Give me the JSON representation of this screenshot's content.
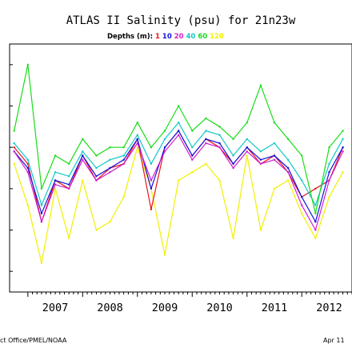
{
  "chart_data": {
    "type": "line",
    "title": "ATLAS II Salinity (psu) for 21n23w",
    "legend": {
      "prefix": "Depths (m):",
      "items": [
        {
          "label": "1",
          "color": "#e8151b"
        },
        {
          "label": "10",
          "color": "#1414dc"
        },
        {
          "label": "20",
          "color": "#d21ed2"
        },
        {
          "label": "40",
          "color": "#12c8c8"
        },
        {
          "label": "60",
          "color": "#18dd18"
        },
        {
          "label": "120",
          "color": "#f2f000"
        }
      ],
      "placement": "top-center"
    },
    "x_ticks": [
      "2007",
      "2008",
      "2009",
      "2010",
      "2011",
      "2012"
    ],
    "xlim": [
      "2006-09",
      "2012-12"
    ],
    "ylim": [
      36.85,
      37.45
    ],
    "grid": false,
    "series": [
      {
        "name": "1",
        "color": "#e8151b",
        "x": [
          "2006-10",
          "2007-01",
          "2007-04",
          "2007-07",
          "2007-10",
          "2008-01",
          "2008-04",
          "2008-07",
          "2008-10",
          "2009-01",
          "2009-04",
          "2009-07",
          "2009-10",
          "2010-01",
          "2010-04",
          "2010-07",
          "2010-10",
          "2011-01",
          "2011-04",
          "2011-07",
          "2011-10",
          "2012-01",
          "2012-04",
          "2012-07",
          "2012-10"
        ],
        "values": [
          37.2,
          37.16,
          37.02,
          37.12,
          37.1,
          37.18,
          37.12,
          37.15,
          37.16,
          37.22,
          37.05,
          37.2,
          37.24,
          37.18,
          37.22,
          37.2,
          37.16,
          37.2,
          37.16,
          37.18,
          37.14,
          37.08,
          37.1,
          37.12,
          37.2
        ]
      },
      {
        "name": "10",
        "color": "#1414dc",
        "x": [
          "2006-10",
          "2007-01",
          "2007-04",
          "2007-07",
          "2007-10",
          "2008-01",
          "2008-04",
          "2008-07",
          "2008-10",
          "2009-01",
          "2009-04",
          "2009-07",
          "2009-10",
          "2010-01",
          "2010-04",
          "2010-07",
          "2010-10",
          "2011-01",
          "2011-04",
          "2011-07",
          "2011-10",
          "2012-01",
          "2012-04",
          "2012-07",
          "2012-10"
        ],
        "values": [
          37.19,
          37.15,
          37.04,
          37.12,
          37.11,
          37.18,
          37.13,
          37.15,
          37.17,
          37.22,
          37.1,
          37.2,
          37.24,
          37.18,
          37.22,
          37.21,
          37.16,
          37.2,
          37.17,
          37.18,
          37.15,
          37.08,
          37.02,
          37.14,
          37.2
        ]
      },
      {
        "name": "20",
        "color": "#d21ed2",
        "x": [
          "2006-10",
          "2007-01",
          "2007-04",
          "2007-07",
          "2007-10",
          "2008-01",
          "2008-04",
          "2008-07",
          "2008-10",
          "2009-01",
          "2009-04",
          "2009-07",
          "2009-10",
          "2010-01",
          "2010-04",
          "2010-07",
          "2010-10",
          "2011-01",
          "2011-04",
          "2011-07",
          "2011-10",
          "2012-01",
          "2012-04",
          "2012-07",
          "2012-10"
        ],
        "values": [
          37.19,
          37.14,
          37.02,
          37.11,
          37.1,
          37.17,
          37.12,
          37.14,
          37.16,
          37.21,
          37.12,
          37.19,
          37.23,
          37.17,
          37.21,
          37.2,
          37.15,
          37.19,
          37.16,
          37.17,
          37.14,
          37.06,
          37.0,
          37.12,
          37.19
        ]
      },
      {
        "name": "40",
        "color": "#12c8c8",
        "x": [
          "2006-10",
          "2007-01",
          "2007-04",
          "2007-07",
          "2007-10",
          "2008-01",
          "2008-04",
          "2008-07",
          "2008-10",
          "2009-01",
          "2009-04",
          "2009-07",
          "2009-10",
          "2010-01",
          "2010-04",
          "2010-07",
          "2010-10",
          "2011-01",
          "2011-04",
          "2011-07",
          "2011-10",
          "2012-01",
          "2012-04",
          "2012-07",
          "2012-10"
        ],
        "values": [
          37.21,
          37.17,
          37.06,
          37.14,
          37.13,
          37.19,
          37.15,
          37.17,
          37.18,
          37.23,
          37.16,
          37.22,
          37.26,
          37.2,
          37.24,
          37.23,
          37.18,
          37.22,
          37.19,
          37.21,
          37.17,
          37.12,
          37.06,
          37.16,
          37.22
        ]
      },
      {
        "name": "60",
        "color": "#18dd18",
        "x": [
          "2006-10",
          "2007-01",
          "2007-04",
          "2007-07",
          "2007-10",
          "2008-01",
          "2008-04",
          "2008-07",
          "2008-10",
          "2009-01",
          "2009-04",
          "2009-07",
          "2009-10",
          "2010-01",
          "2010-04",
          "2010-07",
          "2010-10",
          "2011-01",
          "2011-04",
          "2011-07",
          "2011-10",
          "2012-01",
          "2012-04",
          "2012-07",
          "2012-10"
        ],
        "values": [
          37.24,
          37.4,
          37.1,
          37.18,
          37.16,
          37.22,
          37.18,
          37.2,
          37.2,
          37.26,
          37.2,
          37.24,
          37.3,
          37.24,
          37.27,
          37.25,
          37.22,
          37.26,
          37.35,
          37.26,
          37.22,
          37.18,
          37.04,
          37.2,
          37.24
        ]
      },
      {
        "name": "120",
        "color": "#f2f000",
        "x": [
          "2006-10",
          "2007-01",
          "2007-04",
          "2007-07",
          "2007-10",
          "2008-01",
          "2008-04",
          "2008-07",
          "2008-10",
          "2009-01",
          "2009-04",
          "2009-07",
          "2009-10",
          "2010-01",
          "2010-04",
          "2010-07",
          "2010-10",
          "2011-01",
          "2011-04",
          "2011-07",
          "2011-10",
          "2012-01",
          "2012-04",
          "2012-07",
          "2012-10"
        ],
        "values": [
          37.16,
          37.06,
          36.92,
          37.1,
          36.98,
          37.12,
          37.0,
          37.02,
          37.08,
          37.2,
          37.1,
          36.94,
          37.12,
          37.14,
          37.16,
          37.12,
          36.98,
          37.18,
          37.0,
          37.1,
          37.12,
          37.04,
          36.98,
          37.08,
          37.14
        ]
      }
    ]
  },
  "footer": {
    "left": "ct Office/PMEL/NOAA",
    "right": "Apr 11"
  }
}
